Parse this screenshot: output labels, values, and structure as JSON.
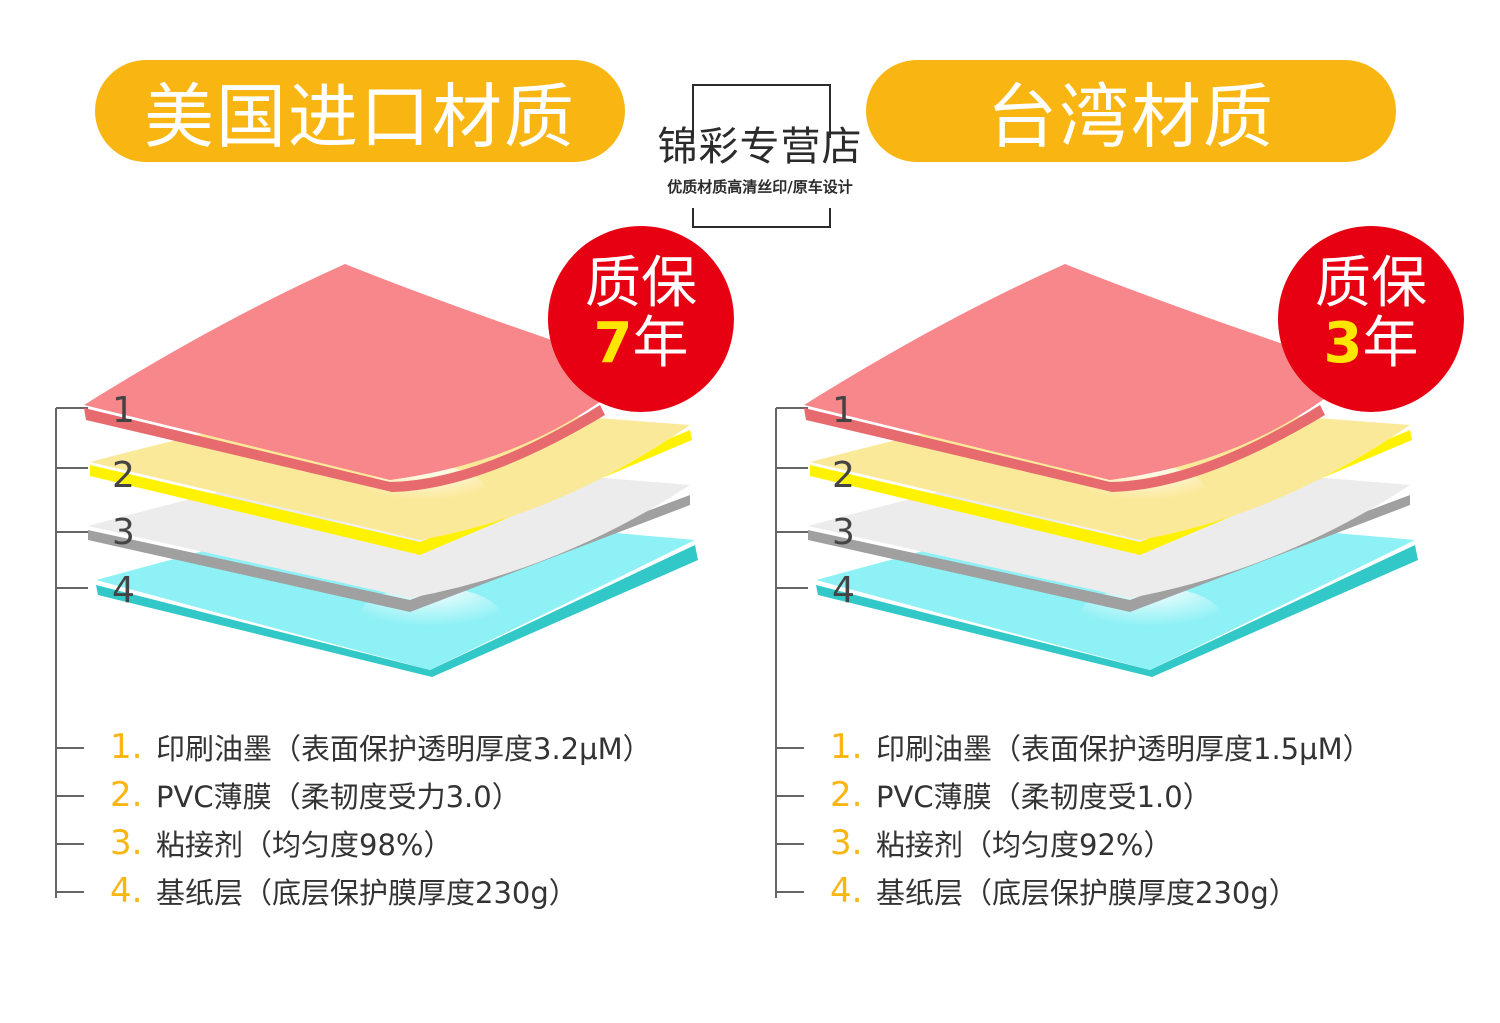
{
  "header": {
    "left_title": "美国进口材质",
    "right_title": "台湾材质",
    "brand_name": "锦彩专营店",
    "brand_slogan": "优质材质高清丝印/原车设计"
  },
  "colors": {
    "accent": "#f9b613",
    "badge": "#e60012",
    "badge_year": "#ffe600",
    "layer1": "#f7878a",
    "layer2": "#fbe99a",
    "layer3": "#ececec",
    "layer4": "#8ef1f5"
  },
  "panels": [
    {
      "badge": {
        "line1": "质保",
        "year": "7",
        "unit": "年"
      },
      "layer_numbers": [
        "1",
        "2",
        "3",
        "4"
      ],
      "legend": [
        {
          "index": "1.",
          "text": "印刷油墨（表面保护透明厚度3.2μM）"
        },
        {
          "index": "2.",
          "text": "PVC薄膜（柔韧度受力3.0）"
        },
        {
          "index": "3.",
          "text": "粘接剂（均匀度98%）"
        },
        {
          "index": "4.",
          "text": "基纸层（底层保护膜厚度230g）"
        }
      ]
    },
    {
      "badge": {
        "line1": "质保",
        "year": "3",
        "unit": "年"
      },
      "layer_numbers": [
        "1",
        "2",
        "3",
        "4"
      ],
      "legend": [
        {
          "index": "1.",
          "text": "印刷油墨（表面保护透明厚度1.5μM）"
        },
        {
          "index": "2.",
          "text": "PVC薄膜（柔韧度受1.0）"
        },
        {
          "index": "3.",
          "text": "粘接剂（均匀度92%）"
        },
        {
          "index": "4.",
          "text": "基纸层（底层保护膜厚度230g）"
        }
      ]
    }
  ]
}
